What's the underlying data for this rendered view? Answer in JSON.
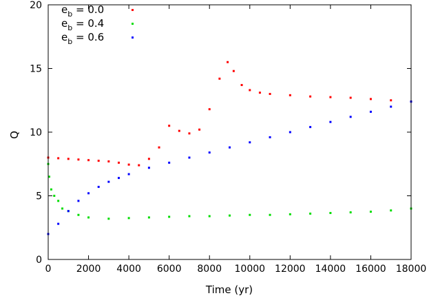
{
  "chart_data": {
    "type": "scatter",
    "title": "",
    "xlabel": "Time (yr)",
    "ylabel": "Q",
    "xlim": [
      0,
      18000
    ],
    "ylim": [
      0,
      20
    ],
    "x_ticks": [
      0,
      2000,
      4000,
      6000,
      8000,
      10000,
      12000,
      14000,
      16000,
      18000
    ],
    "y_ticks": [
      0,
      5,
      10,
      15,
      20
    ],
    "grid": false,
    "legend_position": "top-left",
    "series": [
      {
        "name": "e_b = 0.0",
        "legend_base": "e",
        "legend_sub": "b",
        "legend_value": " = 0.0",
        "color": "#ff0000",
        "points": [
          [
            0,
            8.0
          ],
          [
            500,
            7.95
          ],
          [
            1000,
            7.9
          ],
          [
            1500,
            7.85
          ],
          [
            2000,
            7.8
          ],
          [
            2500,
            7.75
          ],
          [
            3000,
            7.7
          ],
          [
            3500,
            7.6
          ],
          [
            4000,
            7.45
          ],
          [
            4500,
            7.4
          ],
          [
            5000,
            7.9
          ],
          [
            5500,
            8.8
          ],
          [
            6000,
            10.5
          ],
          [
            6500,
            10.1
          ],
          [
            7000,
            9.9
          ],
          [
            7500,
            10.2
          ],
          [
            8000,
            11.8
          ],
          [
            8500,
            14.2
          ],
          [
            8900,
            15.5
          ],
          [
            9200,
            14.8
          ],
          [
            9600,
            13.7
          ],
          [
            10000,
            13.3
          ],
          [
            10500,
            13.1
          ],
          [
            11000,
            13.0
          ],
          [
            12000,
            12.9
          ],
          [
            13000,
            12.8
          ],
          [
            14000,
            12.75
          ],
          [
            15000,
            12.7
          ],
          [
            16000,
            12.6
          ],
          [
            17000,
            12.5
          ],
          [
            18000,
            12.4
          ]
        ]
      },
      {
        "name": "e_b = 0.4",
        "legend_base": "e",
        "legend_sub": "b",
        "legend_value": " = 0.4",
        "color": "#00dd00",
        "points": [
          [
            0,
            7.5
          ],
          [
            50,
            6.5
          ],
          [
            150,
            5.5
          ],
          [
            300,
            5.0
          ],
          [
            500,
            4.6
          ],
          [
            700,
            4.0
          ],
          [
            1000,
            3.8
          ],
          [
            1500,
            3.5
          ],
          [
            2000,
            3.3
          ],
          [
            3000,
            3.2
          ],
          [
            4000,
            3.25
          ],
          [
            5000,
            3.3
          ],
          [
            6000,
            3.35
          ],
          [
            7000,
            3.4
          ],
          [
            8000,
            3.4
          ],
          [
            9000,
            3.45
          ],
          [
            10000,
            3.5
          ],
          [
            11000,
            3.5
          ],
          [
            12000,
            3.55
          ],
          [
            13000,
            3.6
          ],
          [
            14000,
            3.65
          ],
          [
            15000,
            3.7
          ],
          [
            16000,
            3.75
          ],
          [
            17000,
            3.85
          ],
          [
            18000,
            4.0
          ]
        ]
      },
      {
        "name": "e_b = 0.6",
        "legend_base": "e",
        "legend_sub": "b",
        "legend_value": " = 0.6",
        "color": "#0000ff",
        "points": [
          [
            0,
            2.0
          ],
          [
            500,
            2.8
          ],
          [
            1000,
            3.8
          ],
          [
            1500,
            4.6
          ],
          [
            2000,
            5.2
          ],
          [
            2500,
            5.7
          ],
          [
            3000,
            6.1
          ],
          [
            3500,
            6.4
          ],
          [
            4000,
            6.7
          ],
          [
            5000,
            7.2
          ],
          [
            6000,
            7.6
          ],
          [
            7000,
            8.0
          ],
          [
            8000,
            8.4
          ],
          [
            9000,
            8.8
          ],
          [
            10000,
            9.2
          ],
          [
            11000,
            9.6
          ],
          [
            12000,
            10.0
          ],
          [
            13000,
            10.4
          ],
          [
            14000,
            10.8
          ],
          [
            15000,
            11.2
          ],
          [
            16000,
            11.6
          ],
          [
            17000,
            12.0
          ],
          [
            18000,
            12.4
          ]
        ]
      }
    ]
  }
}
